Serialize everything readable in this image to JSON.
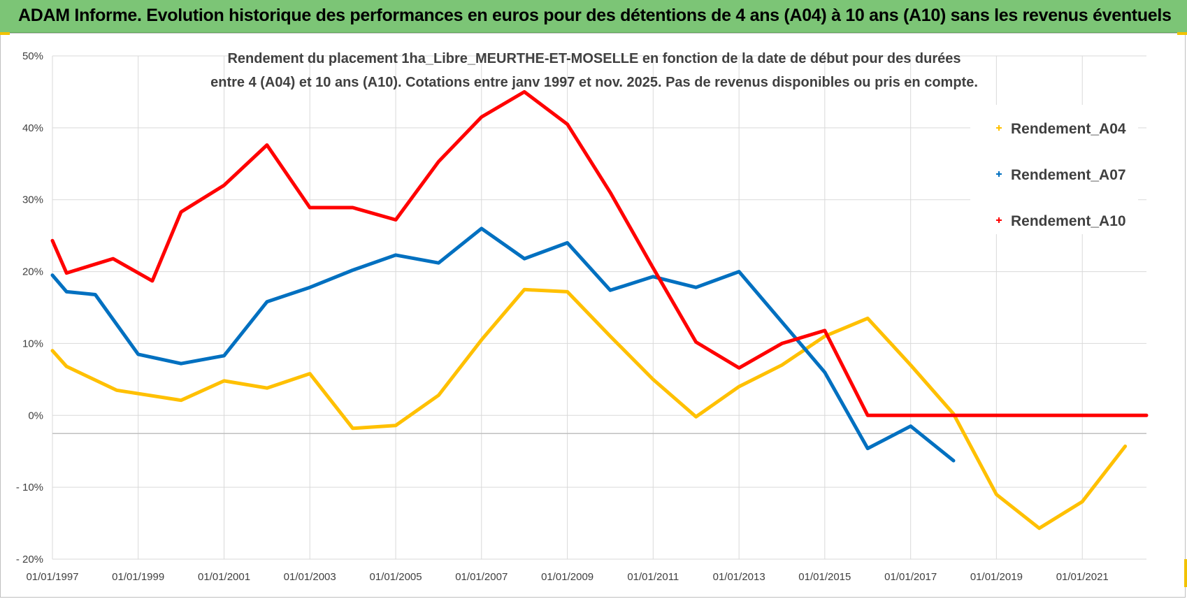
{
  "banner": {
    "title": "ADAM Informe. Evolution historique des performances en euros pour des détentions de 4 ans (A04) à 10 ans (A10) sans les revenus éventuels"
  },
  "colors": {
    "banner": "#7cc576",
    "A04": "#ffc000",
    "A07": "#0070c0",
    "A10": "#ff0000",
    "grid": "#d9d9d9",
    "text": "#404040"
  },
  "chart_data": {
    "type": "line",
    "title_lines": [
      "Rendement du placement 1ha_Libre_MEURTHE-ET-MOSELLE en fonction de la date de début pour des durées",
      "entre 4 (A04) et 10 ans (A10).  Cotations entre janv 1997 et nov. 2025. Pas de revenus disponibles ou pris en compte."
    ],
    "xlabel": "",
    "ylabel": "",
    "xlim": [
      "01/01/1997",
      "01/07/2022"
    ],
    "ylim": [
      -20,
      50
    ],
    "y_ticks": [
      -20,
      -10,
      0,
      10,
      20,
      30,
      40,
      50
    ],
    "y_tick_labels": [
      "- 20%",
      "- 10%",
      "0%",
      "10%",
      "20%",
      "30%",
      "40%",
      "50%"
    ],
    "x_ticks": [
      "01/01/1997",
      "01/01/1999",
      "01/01/2001",
      "01/01/2003",
      "01/01/2005",
      "01/01/2007",
      "01/01/2009",
      "01/01/2011",
      "01/01/2013",
      "01/01/2015",
      "01/01/2017",
      "01/01/2019",
      "01/01/2021"
    ],
    "grid": true,
    "legend_position": "right",
    "series": [
      {
        "name": "Rendement_A04",
        "color": "#ffc000",
        "x": [
          "01/01/1997",
          "01/05/1997",
          "01/07/1998",
          "01/01/2000",
          "01/01/2001",
          "01/01/2002",
          "01/01/2003",
          "01/01/2004",
          "01/01/2005",
          "01/01/2006",
          "01/01/2007",
          "01/01/2008",
          "01/01/2009",
          "01/01/2010",
          "01/01/2011",
          "01/01/2012",
          "01/01/2013",
          "01/01/2014",
          "01/01/2015",
          "01/01/2016",
          "01/01/2017",
          "01/01/2018",
          "01/01/2019",
          "01/01/2020",
          "01/01/2021",
          "01/01/2022"
        ],
        "y": [
          9.0,
          6.8,
          3.5,
          2.1,
          4.8,
          3.8,
          5.8,
          -1.8,
          -1.4,
          2.8,
          10.5,
          17.5,
          17.2,
          11.0,
          5.0,
          -0.2,
          4.0,
          7.0,
          11.0,
          13.5,
          7.0,
          0.2,
          -11.0,
          -15.7,
          -12.0,
          -4.3
        ]
      },
      {
        "name": "Rendement_A07",
        "color": "#0070c0",
        "x": [
          "01/01/1997",
          "01/05/1997",
          "01/01/1998",
          "01/01/1999",
          "01/01/2000",
          "01/01/2001",
          "01/01/2002",
          "01/01/2003",
          "01/01/2004",
          "01/01/2005",
          "01/01/2006",
          "01/01/2007",
          "01/01/2008",
          "01/01/2009",
          "01/01/2010",
          "01/01/2011",
          "01/01/2012",
          "01/01/2013",
          "01/01/2014",
          "01/01/2015",
          "01/01/2016",
          "01/01/2017",
          "01/01/2018"
        ],
        "y": [
          19.5,
          17.2,
          16.8,
          8.5,
          7.2,
          8.3,
          15.8,
          17.8,
          20.2,
          22.3,
          21.2,
          26.0,
          21.8,
          24.0,
          17.4,
          19.3,
          17.8,
          20.0,
          13.0,
          6.0,
          -4.6,
          -1.5,
          -6.3
        ]
      },
      {
        "name": "Rendement_A10",
        "color": "#ff0000",
        "x": [
          "01/01/1997",
          "01/05/1997",
          "01/06/1998",
          "01/05/1999",
          "01/01/2000",
          "01/01/2001",
          "01/01/2002",
          "01/01/2003",
          "01/01/2004",
          "01/01/2005",
          "01/01/2006",
          "01/01/2007",
          "01/01/2008",
          "01/01/2009",
          "01/01/2010",
          "01/01/2011",
          "01/01/2012",
          "01/01/2013",
          "01/01/2014",
          "01/01/2015",
          "01/01/2016",
          "01/01/2017",
          "01/01/2018",
          "01/01/2019",
          "01/01/2020",
          "01/01/2021",
          "01/07/2022"
        ],
        "y": [
          24.3,
          19.8,
          21.8,
          18.7,
          28.3,
          32.0,
          37.6,
          28.9,
          28.9,
          27.2,
          35.3,
          41.5,
          45.0,
          40.5,
          31.0,
          20.5,
          10.2,
          6.6,
          10.0,
          11.8,
          0.0,
          0.0,
          0.0,
          0.0,
          0.0,
          0.0,
          0.0
        ]
      }
    ]
  }
}
